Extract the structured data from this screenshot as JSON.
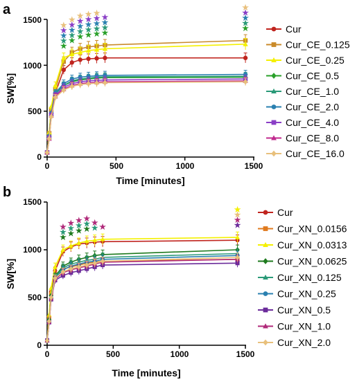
{
  "panels": [
    "a",
    "b"
  ],
  "chart_data": [
    {
      "type": "line",
      "panel": "a",
      "xlabel": "Time [minutes]",
      "ylabel": "SW[%]",
      "xlim": [
        0,
        1500
      ],
      "ylim": [
        0,
        1500
      ],
      "xticks": [
        "0",
        "500",
        "1000",
        "1500"
      ],
      "yticks": [
        "0",
        "500",
        "1000",
        "1500"
      ],
      "legend_position": "right",
      "x": [
        0,
        15,
        30,
        60,
        120,
        180,
        240,
        300,
        360,
        420,
        1440
      ],
      "series": [
        {
          "name": "Cur",
          "color": "#c0241e",
          "marker": "circle",
          "values": [
            50,
            250,
            500,
            700,
            950,
            1030,
            1060,
            1070,
            1075,
            1080,
            1080
          ]
        },
        {
          "name": "Cur_CE_0.125",
          "color": "#c98a2a",
          "marker": "square",
          "values": [
            50,
            260,
            520,
            740,
            1040,
            1140,
            1180,
            1200,
            1210,
            1220,
            1270
          ]
        },
        {
          "name": "Cur_CE_0.25",
          "color": "#f4f000",
          "marker": "triangle",
          "values": [
            50,
            270,
            550,
            780,
            1080,
            1120,
            1140,
            1160,
            1170,
            1180,
            1230
          ]
        },
        {
          "name": "Cur_CE_0.5",
          "color": "#2aa02a",
          "marker": "diamond",
          "values": [
            50,
            220,
            480,
            690,
            780,
            820,
            840,
            850,
            860,
            865,
            870
          ]
        },
        {
          "name": "Cur_CE_1.0",
          "color": "#2a9a78",
          "marker": "triangle",
          "values": [
            50,
            220,
            470,
            690,
            780,
            830,
            850,
            860,
            870,
            875,
            880
          ]
        },
        {
          "name": "Cur_CE_2.0",
          "color": "#2a80b0",
          "marker": "circle",
          "values": [
            50,
            230,
            480,
            700,
            800,
            850,
            870,
            880,
            885,
            890,
            900
          ]
        },
        {
          "name": "Cur_CE_4.0",
          "color": "#8a3ec6",
          "marker": "square",
          "values": [
            50,
            210,
            460,
            670,
            760,
            800,
            820,
            830,
            835,
            840,
            850
          ]
        },
        {
          "name": "Cur_CE_8.0",
          "color": "#c02a8e",
          "marker": "triangle",
          "values": [
            50,
            200,
            450,
            660,
            740,
            780,
            800,
            810,
            815,
            820,
            830
          ]
        },
        {
          "name": "Cur_CE_16.0",
          "color": "#e8c07c",
          "marker": "diamond",
          "values": [
            50,
            200,
            440,
            650,
            730,
            770,
            790,
            800,
            805,
            810,
            820
          ]
        }
      ],
      "significance_marks": [
        {
          "x": 120,
          "stars": [
            "#2aa02a",
            "#2a9a78",
            "#2a80b0",
            "#8a3ec6",
            "#e8c07c"
          ]
        },
        {
          "x": 180,
          "stars": [
            "#2aa02a",
            "#2a9a78",
            "#2a80b0",
            "#8a3ec6",
            "#e8c07c"
          ]
        },
        {
          "x": 240,
          "stars": [
            "#2aa02a",
            "#2a9a78",
            "#2a80b0",
            "#8a3ec6",
            "#e8c07c"
          ]
        },
        {
          "x": 300,
          "stars": [
            "#2aa02a",
            "#2a9a78",
            "#2a80b0",
            "#8a3ec6",
            "#e8c07c"
          ]
        },
        {
          "x": 360,
          "stars": [
            "#2aa02a",
            "#2a9a78",
            "#2a80b0",
            "#8a3ec6",
            "#e8c07c"
          ]
        },
        {
          "x": 420,
          "stars": [
            "#2aa02a",
            "#2a9a78",
            "#2a80b0",
            "#8a3ec6"
          ]
        },
        {
          "x": 1440,
          "stars": [
            "#2aa02a",
            "#2a9a78",
            "#2a80b0",
            "#8a3ec6",
            "#e8c07c"
          ]
        }
      ]
    },
    {
      "type": "line",
      "panel": "b",
      "xlabel": "Time [minutes]",
      "ylabel": "SW[%]",
      "xlim": [
        0,
        1500
      ],
      "ylim": [
        0,
        1500
      ],
      "xticks": [
        "0",
        "500",
        "1000",
        "1500"
      ],
      "yticks": [
        "0",
        "500",
        "1000",
        "1500"
      ],
      "legend_position": "right",
      "x": [
        0,
        15,
        30,
        60,
        120,
        180,
        240,
        300,
        360,
        420,
        1440
      ],
      "series": [
        {
          "name": "Cur",
          "color": "#c0241e",
          "marker": "circle",
          "values": [
            50,
            300,
            560,
            780,
            980,
            1030,
            1060,
            1070,
            1080,
            1085,
            1100
          ]
        },
        {
          "name": "Cur_XN_0.0156",
          "color": "#e07a1e",
          "marker": "square",
          "values": [
            50,
            280,
            540,
            740,
            800,
            820,
            840,
            860,
            870,
            880,
            900
          ]
        },
        {
          "name": "Cur_XN_0.0313",
          "color": "#f4f000",
          "marker": "triangle",
          "values": [
            50,
            320,
            600,
            820,
            1000,
            1040,
            1070,
            1090,
            1100,
            1110,
            1130
          ]
        },
        {
          "name": "Cur_XN_0.0625",
          "color": "#1e7a1e",
          "marker": "diamond",
          "values": [
            50,
            270,
            520,
            720,
            830,
            870,
            900,
            920,
            940,
            950,
            1000
          ]
        },
        {
          "name": "Cur_XN_0.125",
          "color": "#2a9a78",
          "marker": "triangle",
          "values": [
            50,
            260,
            510,
            710,
            810,
            850,
            870,
            890,
            900,
            920,
            960
          ]
        },
        {
          "name": "Cur_XN_0.25",
          "color": "#2a80b0",
          "marker": "circle",
          "values": [
            50,
            250,
            500,
            700,
            790,
            830,
            850,
            870,
            880,
            900,
            940
          ]
        },
        {
          "name": "Cur_XN_0.5",
          "color": "#6a2a9a",
          "marker": "square",
          "values": [
            50,
            240,
            480,
            680,
            730,
            760,
            780,
            800,
            820,
            840,
            860
          ]
        },
        {
          "name": "Cur_XN_1.0",
          "color": "#b02a7a",
          "marker": "triangle",
          "values": [
            50,
            245,
            490,
            690,
            760,
            790,
            810,
            830,
            850,
            870,
            900
          ]
        },
        {
          "name": "Cur_XN_2.0",
          "color": "#e8c07c",
          "marker": "diamond",
          "values": [
            50,
            250,
            500,
            700,
            770,
            800,
            820,
            840,
            860,
            880,
            920
          ]
        }
      ],
      "significance_marks": [
        {
          "x": 120,
          "stars": [
            "#1e7a1e",
            "#2a9a78",
            "#b02a7a"
          ]
        },
        {
          "x": 180,
          "stars": [
            "#1e7a1e",
            "#2a9a78",
            "#b02a7a"
          ]
        },
        {
          "x": 240,
          "stars": [
            "#1e7a1e",
            "#2a9a78",
            "#b02a7a"
          ]
        },
        {
          "x": 300,
          "stars": [
            "#1e7a1e",
            "#2a9a78",
            "#b02a7a"
          ]
        },
        {
          "x": 360,
          "stars": [
            "#2a9a78",
            "#b02a7a"
          ]
        },
        {
          "x": 420,
          "stars": [
            "#b02a7a"
          ]
        },
        {
          "x": 1440,
          "stars": [
            "#6a2a9a",
            "#b02a7a",
            "#e8c07c",
            "#f4f000"
          ]
        }
      ]
    }
  ]
}
